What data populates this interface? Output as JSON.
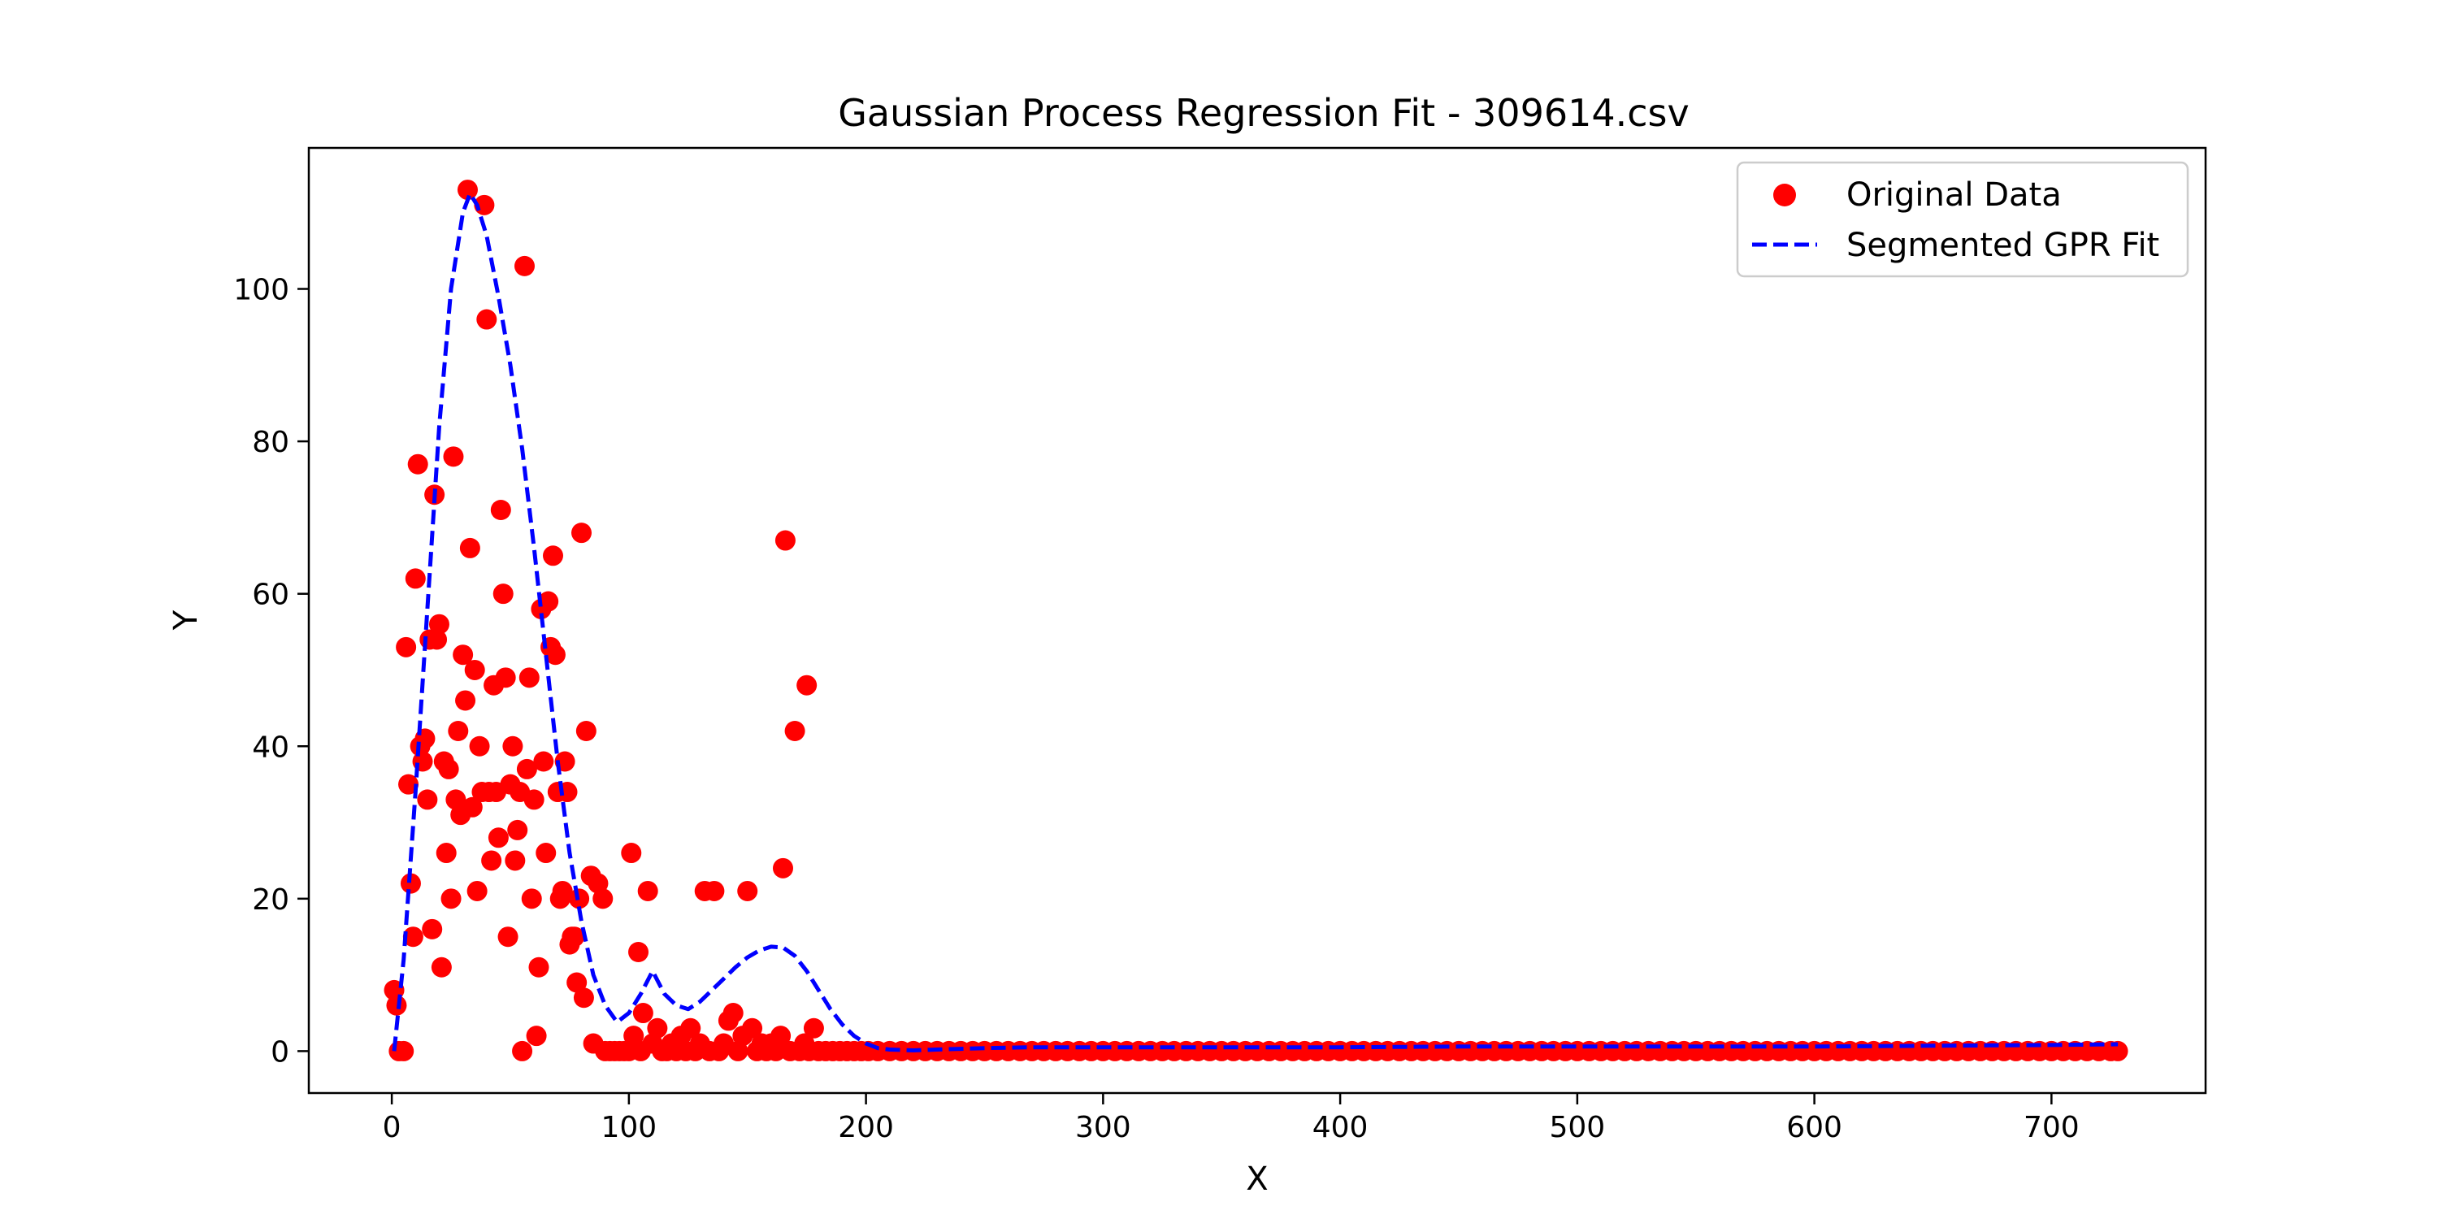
{
  "chart_data": {
    "type": "scatter",
    "title": "Gaussian Process Regression Fit - 309614.csv",
    "xlabel": "X",
    "ylabel": "Y",
    "xlim": [
      -35,
      765
    ],
    "ylim": [
      -5.5,
      118.5
    ],
    "xticks": [
      0,
      100,
      200,
      300,
      400,
      500,
      600,
      700
    ],
    "yticks": [
      0,
      20,
      40,
      60,
      80,
      100
    ],
    "grid": false,
    "legend_position": "top-right",
    "colors": {
      "points": "#ff0000",
      "fit": "#0000ff"
    },
    "series": [
      {
        "name": "Original Data",
        "kind": "scatter",
        "points": [
          [
            1,
            8
          ],
          [
            2,
            6
          ],
          [
            3,
            0
          ],
          [
            5,
            0
          ],
          [
            6,
            53
          ],
          [
            7,
            35
          ],
          [
            8,
            22
          ],
          [
            9,
            15
          ],
          [
            10,
            62
          ],
          [
            11,
            77
          ],
          [
            12,
            40
          ],
          [
            13,
            38
          ],
          [
            14,
            41
          ],
          [
            15,
            33
          ],
          [
            16,
            54
          ],
          [
            17,
            16
          ],
          [
            18,
            73
          ],
          [
            19,
            54
          ],
          [
            20,
            56
          ],
          [
            21,
            11
          ],
          [
            22,
            38
          ],
          [
            23,
            26
          ],
          [
            24,
            37
          ],
          [
            25,
            20
          ],
          [
            26,
            78
          ],
          [
            27,
            33
          ],
          [
            28,
            42
          ],
          [
            29,
            31
          ],
          [
            30,
            52
          ],
          [
            31,
            46
          ],
          [
            32,
            113
          ],
          [
            33,
            66
          ],
          [
            34,
            32
          ],
          [
            35,
            50
          ],
          [
            36,
            21
          ],
          [
            37,
            40
          ],
          [
            38,
            34
          ],
          [
            39,
            111
          ],
          [
            40,
            96
          ],
          [
            41,
            34
          ],
          [
            42,
            25
          ],
          [
            43,
            48
          ],
          [
            44,
            34
          ],
          [
            45,
            28
          ],
          [
            46,
            71
          ],
          [
            47,
            60
          ],
          [
            48,
            49
          ],
          [
            49,
            15
          ],
          [
            50,
            35
          ],
          [
            51,
            40
          ],
          [
            52,
            25
          ],
          [
            53,
            29
          ],
          [
            54,
            34
          ],
          [
            55,
            0
          ],
          [
            56,
            103
          ],
          [
            57,
            37
          ],
          [
            58,
            49
          ],
          [
            59,
            20
          ],
          [
            60,
            33
          ],
          [
            61,
            2
          ],
          [
            62,
            11
          ],
          [
            63,
            58
          ],
          [
            64,
            38
          ],
          [
            65,
            26
          ],
          [
            66,
            59
          ],
          [
            67,
            53
          ],
          [
            68,
            65
          ],
          [
            69,
            52
          ],
          [
            70,
            34
          ],
          [
            71,
            20
          ],
          [
            72,
            21
          ],
          [
            73,
            38
          ],
          [
            74,
            34
          ],
          [
            75,
            14
          ],
          [
            76,
            15
          ],
          [
            77,
            15
          ],
          [
            78,
            9
          ],
          [
            79,
            20
          ],
          [
            80,
            68
          ],
          [
            81,
            7
          ],
          [
            82,
            42
          ],
          [
            84,
            23
          ],
          [
            85,
            1
          ],
          [
            87,
            22
          ],
          [
            89,
            20
          ],
          [
            90,
            0
          ],
          [
            92,
            0
          ],
          [
            94,
            0
          ],
          [
            96,
            0
          ],
          [
            98,
            0
          ],
          [
            100,
            0
          ],
          [
            101,
            26
          ],
          [
            102,
            2
          ],
          [
            104,
            13
          ],
          [
            105,
            0
          ],
          [
            106,
            5
          ],
          [
            108,
            21
          ],
          [
            110,
            1
          ],
          [
            112,
            3
          ],
          [
            114,
            0
          ],
          [
            116,
            0
          ],
          [
            118,
            1
          ],
          [
            120,
            0
          ],
          [
            122,
            2
          ],
          [
            124,
            0
          ],
          [
            126,
            3
          ],
          [
            128,
            0
          ],
          [
            130,
            1
          ],
          [
            132,
            21
          ],
          [
            134,
            0
          ],
          [
            136,
            21
          ],
          [
            138,
            0
          ],
          [
            140,
            1
          ],
          [
            142,
            4
          ],
          [
            144,
            5
          ],
          [
            146,
            0
          ],
          [
            148,
            2
          ],
          [
            150,
            21
          ],
          [
            152,
            3
          ],
          [
            154,
            0
          ],
          [
            156,
            1
          ],
          [
            158,
            0
          ],
          [
            160,
            1
          ],
          [
            162,
            0
          ],
          [
            164,
            2
          ],
          [
            165,
            24
          ],
          [
            166,
            67
          ],
          [
            168,
            0
          ],
          [
            170,
            42
          ],
          [
            172,
            0
          ],
          [
            174,
            1
          ],
          [
            175,
            48
          ],
          [
            176,
            0
          ],
          [
            178,
            3
          ],
          [
            180,
            0
          ],
          [
            183,
            0
          ],
          [
            186,
            0
          ],
          [
            189,
            0
          ],
          [
            192,
            0
          ],
          [
            195,
            0
          ],
          [
            198,
            0
          ],
          [
            201,
            0
          ],
          [
            205,
            0
          ],
          [
            210,
            0
          ],
          [
            215,
            0
          ],
          [
            220,
            0
          ],
          [
            225,
            0
          ],
          [
            230,
            0
          ],
          [
            235,
            0
          ],
          [
            240,
            0
          ],
          [
            245,
            0
          ],
          [
            250,
            0
          ],
          [
            255,
            0
          ],
          [
            260,
            0
          ],
          [
            265,
            0
          ],
          [
            270,
            0
          ],
          [
            275,
            0
          ],
          [
            280,
            0
          ],
          [
            285,
            0
          ],
          [
            290,
            0
          ],
          [
            295,
            0
          ],
          [
            300,
            0
          ],
          [
            305,
            0
          ],
          [
            310,
            0
          ],
          [
            315,
            0
          ],
          [
            320,
            0
          ],
          [
            325,
            0
          ],
          [
            330,
            0
          ],
          [
            335,
            0
          ],
          [
            340,
            0
          ],
          [
            345,
            0
          ],
          [
            350,
            0
          ],
          [
            355,
            0
          ],
          [
            360,
            0
          ],
          [
            365,
            0
          ],
          [
            370,
            0
          ],
          [
            375,
            0
          ],
          [
            380,
            0
          ],
          [
            385,
            0
          ],
          [
            390,
            0
          ],
          [
            395,
            0
          ],
          [
            400,
            0
          ],
          [
            405,
            0
          ],
          [
            410,
            0
          ],
          [
            415,
            0
          ],
          [
            420,
            0
          ],
          [
            425,
            0
          ],
          [
            430,
            0
          ],
          [
            435,
            0
          ],
          [
            440,
            0
          ],
          [
            445,
            0
          ],
          [
            450,
            0
          ],
          [
            455,
            0
          ],
          [
            460,
            0
          ],
          [
            465,
            0
          ],
          [
            470,
            0
          ],
          [
            475,
            0
          ],
          [
            480,
            0
          ],
          [
            485,
            0
          ],
          [
            490,
            0
          ],
          [
            495,
            0
          ],
          [
            500,
            0
          ],
          [
            505,
            0
          ],
          [
            510,
            0
          ],
          [
            515,
            0
          ],
          [
            520,
            0
          ],
          [
            525,
            0
          ],
          [
            530,
            0
          ],
          [
            535,
            0
          ],
          [
            540,
            0
          ],
          [
            545,
            0
          ],
          [
            550,
            0
          ],
          [
            555,
            0
          ],
          [
            560,
            0
          ],
          [
            565,
            0
          ],
          [
            570,
            0
          ],
          [
            575,
            0
          ],
          [
            580,
            0
          ],
          [
            585,
            0
          ],
          [
            590,
            0
          ],
          [
            595,
            0
          ],
          [
            600,
            0
          ],
          [
            605,
            0
          ],
          [
            610,
            0
          ],
          [
            615,
            0
          ],
          [
            620,
            0
          ],
          [
            625,
            0
          ],
          [
            630,
            0
          ],
          [
            635,
            0
          ],
          [
            640,
            0
          ],
          [
            645,
            0
          ],
          [
            650,
            0
          ],
          [
            655,
            0
          ],
          [
            660,
            0
          ],
          [
            665,
            0
          ],
          [
            670,
            0
          ],
          [
            675,
            0
          ],
          [
            680,
            0
          ],
          [
            685,
            0
          ],
          [
            690,
            0
          ],
          [
            695,
            0
          ],
          [
            700,
            0
          ],
          [
            705,
            0
          ],
          [
            710,
            0
          ],
          [
            715,
            0
          ],
          [
            720,
            0
          ],
          [
            725,
            0
          ],
          [
            728,
            0
          ]
        ]
      },
      {
        "name": "Segmented GPR Fit",
        "kind": "line",
        "style": "dashed",
        "points": [
          [
            1,
            0
          ],
          [
            5,
            12
          ],
          [
            10,
            34
          ],
          [
            15,
            58
          ],
          [
            20,
            82
          ],
          [
            25,
            100
          ],
          [
            30,
            110
          ],
          [
            33,
            112.5
          ],
          [
            36,
            111
          ],
          [
            40,
            107
          ],
          [
            45,
            99
          ],
          [
            50,
            90
          ],
          [
            55,
            79
          ],
          [
            60,
            66
          ],
          [
            65,
            52
          ],
          [
            70,
            38
          ],
          [
            75,
            26
          ],
          [
            80,
            17
          ],
          [
            85,
            10
          ],
          [
            90,
            6
          ],
          [
            95,
            3.8
          ],
          [
            100,
            5
          ],
          [
            105,
            7.5
          ],
          [
            110,
            10.5
          ],
          [
            115,
            7.5
          ],
          [
            120,
            6
          ],
          [
            125,
            5.5
          ],
          [
            130,
            6.5
          ],
          [
            135,
            8
          ],
          [
            140,
            9.5
          ],
          [
            145,
            11
          ],
          [
            150,
            12.3
          ],
          [
            155,
            13.2
          ],
          [
            160,
            13.7
          ],
          [
            165,
            13.6
          ],
          [
            170,
            12.5
          ],
          [
            175,
            10.5
          ],
          [
            180,
            8
          ],
          [
            185,
            5.5
          ],
          [
            190,
            3.5
          ],
          [
            195,
            2
          ],
          [
            200,
            1
          ],
          [
            205,
            0.4
          ],
          [
            210,
            0.2
          ],
          [
            220,
            0.1
          ],
          [
            230,
            0.2
          ],
          [
            240,
            0.3
          ],
          [
            250,
            0.4
          ],
          [
            270,
            0.5
          ],
          [
            300,
            0.5
          ],
          [
            350,
            0.5
          ],
          [
            400,
            0.5
          ],
          [
            450,
            0.6
          ],
          [
            500,
            0.6
          ],
          [
            550,
            0.6
          ],
          [
            600,
            0.6
          ],
          [
            650,
            0.7
          ],
          [
            700,
            0.8
          ],
          [
            728,
            0.9
          ]
        ]
      }
    ]
  }
}
